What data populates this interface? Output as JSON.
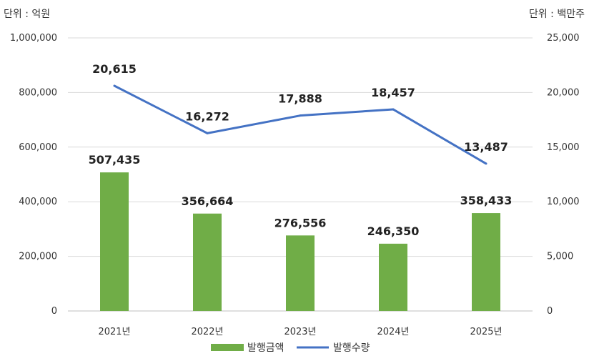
{
  "chart_data": {
    "type": "bar",
    "categories": [
      "2021년",
      "2022년",
      "2023년",
      "2024년",
      "2025년"
    ],
    "y_left_unit": "단위 : 억원",
    "y_right_unit": "단위 : 백만주",
    "y_left_ticks": [
      "0",
      "200,000",
      "400,000",
      "600,000",
      "800,000",
      "1,000,000"
    ],
    "y_right_ticks": [
      "0",
      "5,000",
      "10,000",
      "15,000",
      "20,000",
      "25,000"
    ],
    "y_left_range": [
      0,
      1000000
    ],
    "y_right_range": [
      0,
      25000
    ],
    "grid": true,
    "legend_position": "bottom",
    "series": [
      {
        "name": "발행금액",
        "type": "bar",
        "axis": "left",
        "color": "#70AD47",
        "values": [
          507435,
          356664,
          276556,
          246350,
          358433
        ],
        "labels": [
          "507,435",
          "356,664",
          "276,556",
          "246,350",
          "358,433"
        ]
      },
      {
        "name": "발행수량",
        "type": "line",
        "axis": "right",
        "color": "#4472C4",
        "values": [
          20615,
          16272,
          17888,
          18457,
          13487
        ],
        "labels": [
          "20,615",
          "16,272",
          "17,888",
          "18,457",
          "13,487"
        ]
      }
    ]
  }
}
